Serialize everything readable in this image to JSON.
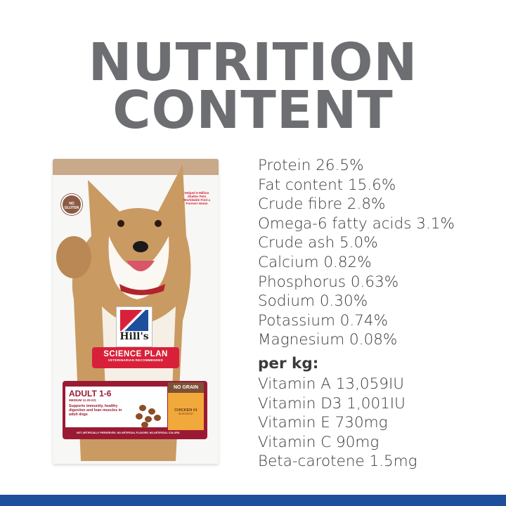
{
  "title": {
    "line1": "NUTRITION",
    "line2": "CONTENT"
  },
  "nutrients": [
    "Protein 26.5%",
    "Fat content 15.6%",
    "Crude fibre 2.8%",
    "Omega-6 fatty acids 3.1%",
    "Crude ash 5.0%",
    "Calcium 0.82%",
    "Phosphorus 0.63%",
    "Sodium 0.30%",
    "Potassium 0.74%",
    "Magnesium 0.08%"
  ],
  "per_kg": {
    "heading": "per kg:",
    "items": [
      "Vitamin A 13,059IU",
      "Vitamin D3 1,001IU",
      "Vitamin E 730mg",
      "Vitamin C 90mg",
      "Beta-carotene 1.5mg"
    ]
  },
  "bag": {
    "no_gluten": "NO GLUTEN",
    "helped": "Helped 9 Million Shelter Pets Worldwide Find a Forever Home",
    "brand": "Hill's",
    "line": "SCIENCE PLAN",
    "tagline": "VETERINARIAN RECOMMENDED",
    "age": "ADULT 1-6",
    "size": "MEDIUM 11-25 KG",
    "benefit": "Supports immunity, healthy digestion and lean muscles in adult dogs",
    "no_grain": "NO GRAIN",
    "chicken": "CHICKEN #1",
    "ingredient": "INGREDIENT",
    "footer": "NOT ARTIFICIALLY PRESERVED. NO ARTIFICIAL FLAVORS. NO ARTIFICIAL COLORS."
  },
  "colors": {
    "title": "#6d6e71",
    "text": "#3a3a3a",
    "brand_red": "#d9203a",
    "brand_blue": "#1c4f9c",
    "panel": "#9b1a33"
  }
}
